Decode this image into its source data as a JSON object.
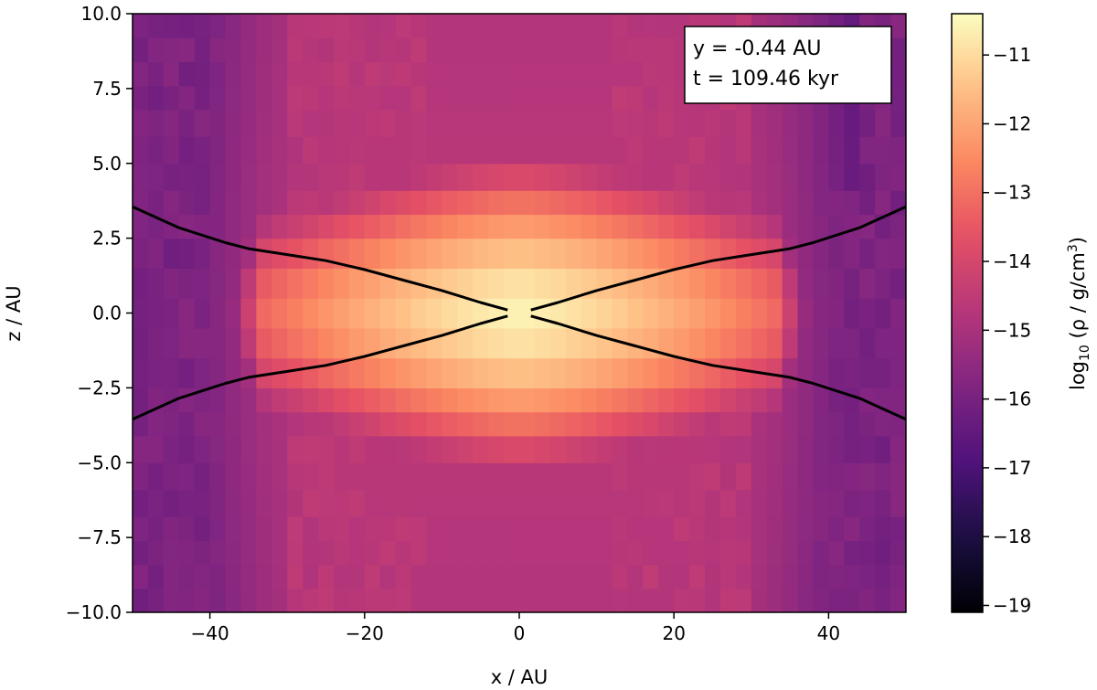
{
  "chart_data": {
    "type": "heatmap",
    "title": "",
    "xlabel": "x / AU",
    "ylabel": "z / AU",
    "xlim": [
      -50,
      50
    ],
    "ylim": [
      -10,
      10
    ],
    "xticks": [
      -40,
      -20,
      0,
      20,
      40
    ],
    "yticks": [
      -10.0,
      -7.5,
      -5.0,
      -2.5,
      0.0,
      2.5,
      5.0,
      7.5,
      10.0
    ],
    "colormap": "magma",
    "colorbar": {
      "label_prefix": "log",
      "label_sub": "10",
      "label_rest": " (ρ / g/cm",
      "label_sup": "3",
      "label_end": ")",
      "range": [
        -19.1,
        -10.4
      ],
      "ticks": [
        -11,
        -12,
        -13,
        -14,
        -15,
        -16,
        -17,
        -18,
        -19
      ]
    },
    "annotation": {
      "line1": "y = -0.44 AU",
      "line2": "t = 109.46 kyr",
      "placement": "top-right"
    },
    "overlay_curves": {
      "color": "#000000",
      "upper_right": [
        [
          1.5,
          0.1
        ],
        [
          5,
          0.35
        ],
        [
          10,
          0.75
        ],
        [
          15,
          1.1
        ],
        [
          20,
          1.45
        ],
        [
          25,
          1.75
        ],
        [
          30,
          1.95
        ],
        [
          35,
          2.15
        ],
        [
          38,
          2.35
        ],
        [
          44,
          2.85
        ],
        [
          50,
          3.55
        ]
      ],
      "upper_left": [
        [
          -1.5,
          0.1
        ],
        [
          -5,
          0.35
        ],
        [
          -10,
          0.75
        ],
        [
          -15,
          1.1
        ],
        [
          -20,
          1.45
        ],
        [
          -25,
          1.75
        ],
        [
          -30,
          1.95
        ],
        [
          -35,
          2.15
        ],
        [
          -38,
          2.35
        ],
        [
          -44,
          2.85
        ],
        [
          -50,
          3.55
        ]
      ],
      "lower_right": [
        [
          1.5,
          -0.1
        ],
        [
          5,
          -0.35
        ],
        [
          10,
          -0.75
        ],
        [
          15,
          -1.1
        ],
        [
          20,
          -1.45
        ],
        [
          25,
          -1.75
        ],
        [
          30,
          -1.95
        ],
        [
          35,
          -2.15
        ],
        [
          38,
          -2.35
        ],
        [
          44,
          -2.85
        ],
        [
          50,
          -3.55
        ]
      ],
      "lower_left": [
        [
          -1.5,
          -0.1
        ],
        [
          -5,
          -0.35
        ],
        [
          -10,
          -0.75
        ],
        [
          -15,
          -1.1
        ],
        [
          -20,
          -1.45
        ],
        [
          -25,
          -1.75
        ],
        [
          -30,
          -1.95
        ],
        [
          -35,
          -2.15
        ],
        [
          -38,
          -2.35
        ],
        [
          -44,
          -2.85
        ],
        [
          -50,
          -3.55
        ]
      ]
    },
    "grid": false,
    "legend": "none",
    "density_field": {
      "x_min": -50,
      "x_max": 50,
      "x_cells": 50,
      "z_min": -10,
      "z_max": 10,
      "z_edges": [
        -10,
        -9.2,
        -8.4,
        -7.6,
        -6.8,
        -5.9,
        -5.0,
        -4.1,
        -3.3,
        -2.5,
        -1.5,
        -0.5,
        0.5,
        1.5,
        2.5,
        3.3,
        4.1,
        5.0,
        5.9,
        6.8,
        7.6,
        8.4,
        9.2,
        10
      ],
      "background_log10_rho": -15.9,
      "disk": {
        "central_log10_rho": -10.6,
        "radial_scale_au": 20,
        "radial_power": 1.4,
        "vertical_scale_au": 2.9,
        "vertical_power": 1.6,
        "edge_au": 33
      },
      "envelope_log10_rho": -14.6,
      "cavity_log10_rho": -16.7
    }
  }
}
